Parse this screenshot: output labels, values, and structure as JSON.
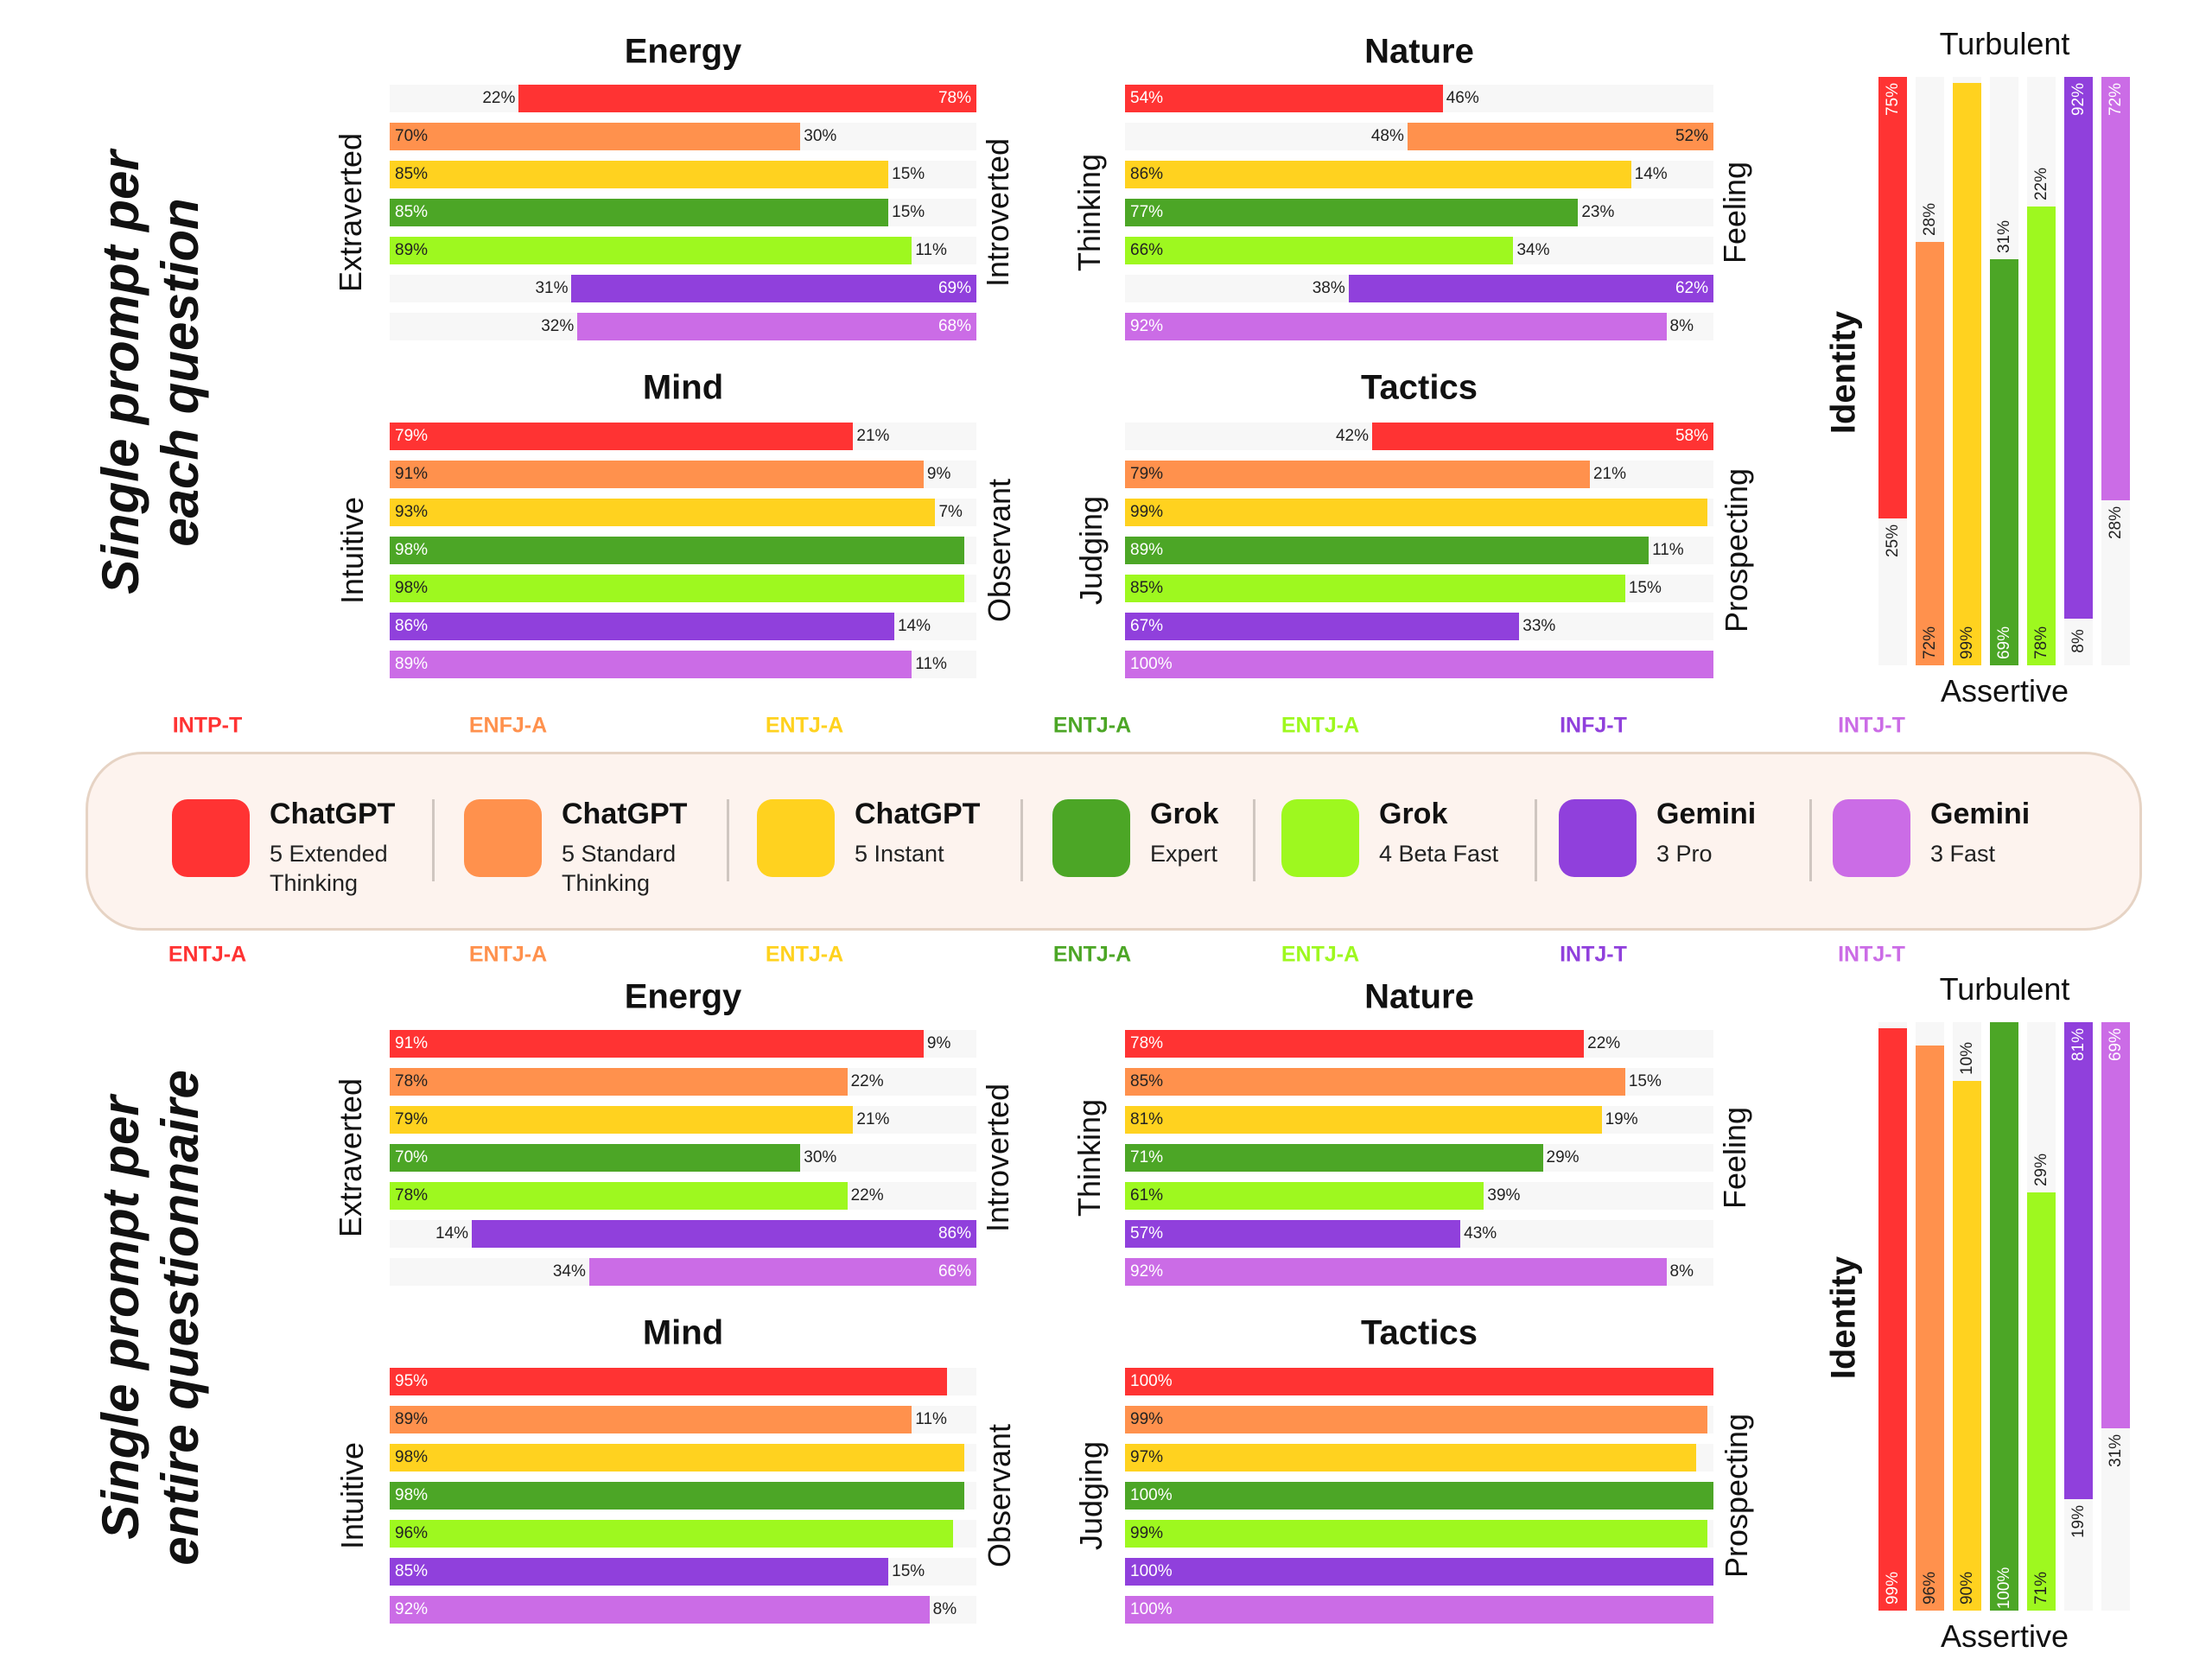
{
  "colors": [
    "#FF3333",
    "#FF914D",
    "#FFD21F",
    "#4CA626",
    "#9EF81F",
    "#9040DC",
    "#CB6CE6"
  ],
  "label_dark": [
    false,
    true,
    true,
    false,
    true,
    false,
    false
  ],
  "legend": [
    {
      "name": "ChatGPT",
      "sub": [
        "5 Extended",
        "Thinking"
      ]
    },
    {
      "name": "ChatGPT",
      "sub": [
        "5 Standard",
        "Thinking"
      ]
    },
    {
      "name": "ChatGPT",
      "sub": [
        "5 Instant"
      ]
    },
    {
      "name": "Grok",
      "sub": [
        "Expert"
      ]
    },
    {
      "name": "Grok",
      "sub": [
        "4 Beta Fast"
      ]
    },
    {
      "name": "Gemini",
      "sub": [
        "3 Pro"
      ]
    },
    {
      "name": "Gemini",
      "sub": [
        "3 Fast"
      ]
    }
  ],
  "chart_data": [
    {
      "type": "bar",
      "panel_label": [
        "Single prompt per",
        "each question"
      ],
      "types": [
        "INTP-T",
        "ENFJ-A",
        "ENTJ-A",
        "ENTJ-A",
        "ENTJ-A",
        "INFJ-T",
        "INTJ-T"
      ],
      "energy": {
        "title": "Energy",
        "left_label": "Extraverted",
        "right_label": "Introverted",
        "rows": [
          [
            22,
            78
          ],
          [
            70,
            30
          ],
          [
            85,
            15
          ],
          [
            85,
            15
          ],
          [
            89,
            11
          ],
          [
            31,
            69
          ],
          [
            32,
            68
          ]
        ]
      },
      "nature": {
        "title": "Nature",
        "left_label": "Thinking",
        "right_label": "Feeling",
        "rows": [
          [
            54,
            46
          ],
          [
            48,
            52
          ],
          [
            86,
            14
          ],
          [
            77,
            23
          ],
          [
            66,
            34
          ],
          [
            38,
            62
          ],
          [
            92,
            8
          ]
        ]
      },
      "mind": {
        "title": "Mind",
        "left_label": "Intuitive",
        "right_label": "Observant",
        "rows": [
          [
            79,
            21
          ],
          [
            91,
            9
          ],
          [
            93,
            7
          ],
          [
            98,
            null
          ],
          [
            98,
            null
          ],
          [
            86,
            14
          ],
          [
            89,
            11
          ]
        ]
      },
      "tactics": {
        "title": "Tactics",
        "left_label": "Judging",
        "right_label": "Prospecting",
        "rows": [
          [
            42,
            58
          ],
          [
            79,
            21
          ],
          [
            99,
            null
          ],
          [
            89,
            11
          ],
          [
            85,
            15
          ],
          [
            67,
            33
          ],
          [
            100,
            null
          ]
        ]
      },
      "identity": {
        "title": "Identity",
        "top_label": "Turbulent",
        "bottom_label": "Assertive",
        "columns": [
          [
            75,
            25
          ],
          [
            28,
            72
          ],
          [
            null,
            99
          ],
          [
            31,
            69
          ],
          [
            22,
            78
          ],
          [
            92,
            8
          ],
          [
            72,
            28
          ]
        ]
      }
    },
    {
      "type": "bar",
      "panel_label": [
        "Single prompt per",
        "entire questionnaire"
      ],
      "types": [
        "ENTJ-A",
        "ENTJ-A",
        "ENTJ-A",
        "ENTJ-A",
        "ENTJ-A",
        "INTJ-T",
        "INTJ-T"
      ],
      "energy": {
        "title": "Energy",
        "left_label": "Extraverted",
        "right_label": "Introverted",
        "rows": [
          [
            91,
            9
          ],
          [
            78,
            22
          ],
          [
            79,
            21
          ],
          [
            70,
            30
          ],
          [
            78,
            22
          ],
          [
            14,
            86
          ],
          [
            34,
            66
          ]
        ]
      },
      "nature": {
        "title": "Nature",
        "left_label": "Thinking",
        "right_label": "Feeling",
        "rows": [
          [
            78,
            22
          ],
          [
            85,
            15
          ],
          [
            81,
            19
          ],
          [
            71,
            29
          ],
          [
            61,
            39
          ],
          [
            57,
            43
          ],
          [
            92,
            8
          ]
        ]
      },
      "mind": {
        "title": "Mind",
        "left_label": "Intuitive",
        "right_label": "Observant",
        "rows": [
          [
            95,
            null
          ],
          [
            89,
            11
          ],
          [
            98,
            null
          ],
          [
            98,
            null
          ],
          [
            96,
            null
          ],
          [
            85,
            15
          ],
          [
            92,
            8
          ]
        ]
      },
      "tactics": {
        "title": "Tactics",
        "left_label": "Judging",
        "right_label": "Prospecting",
        "rows": [
          [
            100,
            null
          ],
          [
            99,
            null
          ],
          [
            97,
            null
          ],
          [
            100,
            null
          ],
          [
            99,
            null
          ],
          [
            100,
            null
          ],
          [
            100,
            null
          ]
        ]
      },
      "identity": {
        "title": "Identity",
        "top_label": "Turbulent",
        "bottom_label": "Assertive",
        "columns": [
          [
            null,
            99
          ],
          [
            null,
            96
          ],
          [
            10,
            90
          ],
          [
            null,
            100
          ],
          [
            29,
            71
          ],
          [
            81,
            19
          ],
          [
            69,
            31
          ]
        ]
      }
    }
  ]
}
